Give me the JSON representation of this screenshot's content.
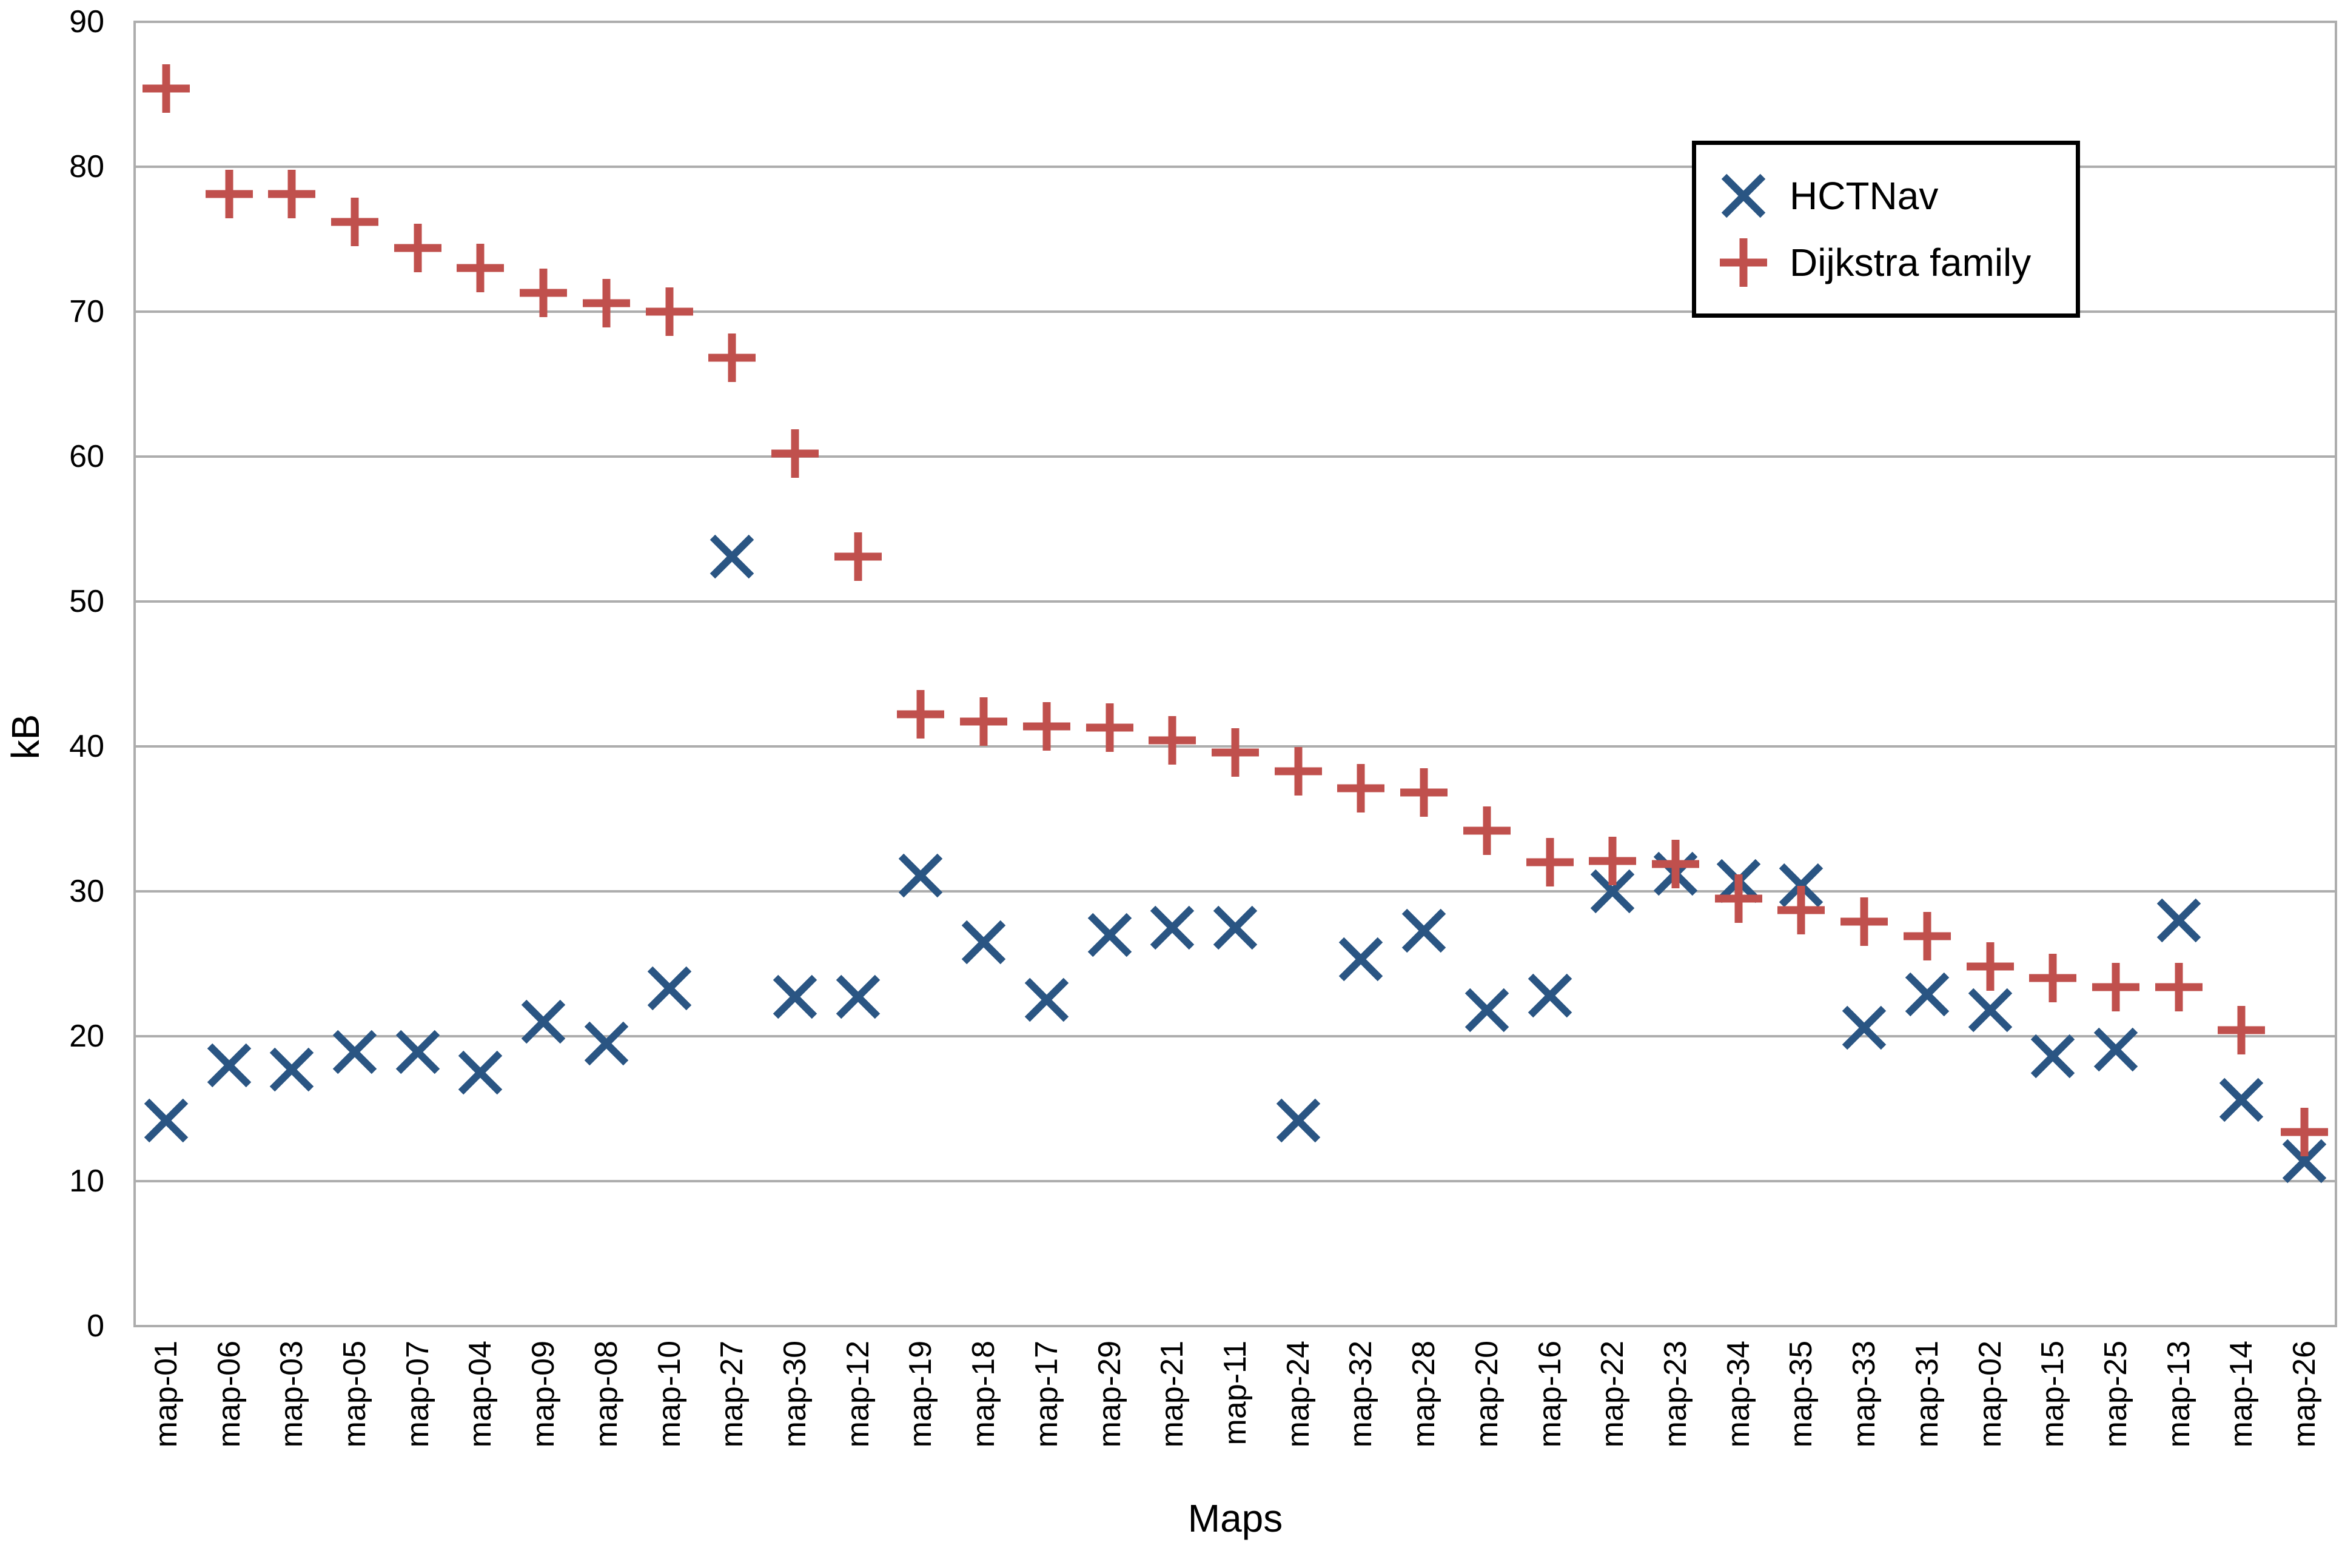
{
  "chart_data": {
    "type": "scatter",
    "title": "",
    "xlabel": "Maps",
    "ylabel": "kB",
    "ylim": [
      0,
      90
    ],
    "yticks": [
      0,
      10,
      20,
      30,
      40,
      50,
      60,
      70,
      80,
      90
    ],
    "grid": "horizontal",
    "legend_position": "top-right",
    "categories": [
      "map-01",
      "map-06",
      "map-03",
      "map-05",
      "map-07",
      "map-04",
      "map-09",
      "map-08",
      "map-10",
      "map-27",
      "map-30",
      "map-12",
      "map-19",
      "map-18",
      "map-17",
      "map-29",
      "map-21",
      "map-11",
      "map-24",
      "map-32",
      "map-28",
      "map-20",
      "map-16",
      "map-22",
      "map-23",
      "map-34",
      "map-35",
      "map-33",
      "map-31",
      "map-02",
      "map-15",
      "map-25",
      "map-13",
      "map-14",
      "map-26"
    ],
    "series": [
      {
        "name": "HCTNav",
        "marker": "x",
        "color": "#2A5583",
        "values": [
          14.2,
          18.0,
          17.7,
          18.9,
          18.9,
          17.5,
          21.0,
          19.5,
          23.3,
          53.1,
          22.7,
          22.7,
          31.1,
          26.5,
          22.5,
          27.0,
          27.5,
          27.5,
          14.2,
          25.3,
          27.3,
          21.8,
          22.8,
          30.0,
          31.2,
          30.7,
          30.4,
          20.6,
          22.9,
          21.8,
          18.6,
          19.1,
          28.0,
          15.6,
          11.4
        ]
      },
      {
        "name": "Dijkstra family",
        "marker": "+",
        "color": "#C0504D",
        "values": [
          85.4,
          78.1,
          78.1,
          76.2,
          74.4,
          73.0,
          71.3,
          70.6,
          70.0,
          66.8,
          60.2,
          53.1,
          42.2,
          41.7,
          41.4,
          41.3,
          40.4,
          39.6,
          38.3,
          37.1,
          36.8,
          34.2,
          32.0,
          32.1,
          31.9,
          29.5,
          28.7,
          27.9,
          26.9,
          24.8,
          24.0,
          23.4,
          23.4,
          20.4,
          13.4
        ]
      }
    ]
  },
  "colors": {
    "hctnav": "#2A5583",
    "dijkstra": "#C0504D",
    "gridline": "#ADADAD",
    "text": "#000000",
    "legend_border": "#000000",
    "background": "#FFFFFF"
  }
}
